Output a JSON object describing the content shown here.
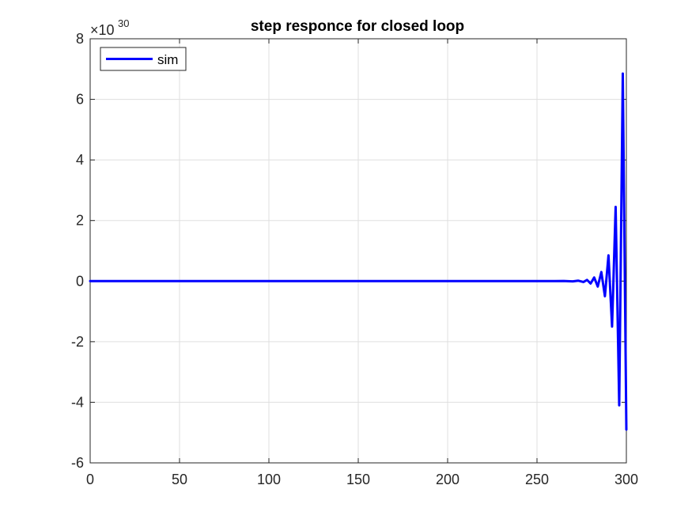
{
  "chart_data": {
    "type": "line",
    "title": "step responce for closed loop",
    "xlabel": "",
    "ylabel": "",
    "xlim": [
      0,
      300
    ],
    "ylim": [
      -6,
      8
    ],
    "y_exponent_label": {
      "base": "×10",
      "power": "30"
    },
    "x_ticks": [
      "0",
      "50",
      "100",
      "150",
      "200",
      "250",
      "300"
    ],
    "y_ticks": [
      "-6",
      "-4",
      "-2",
      "0",
      "2",
      "4",
      "6",
      "8"
    ],
    "grid": true,
    "legend": {
      "position": "top-left",
      "entries": [
        "sim"
      ]
    },
    "series": [
      {
        "name": "sim",
        "color": "#0000ff",
        "x": [
          0,
          240,
          260,
          265,
          270,
          273,
          276,
          278,
          280,
          282,
          284,
          286,
          288,
          290,
          292,
          294,
          296,
          298,
          300
        ],
        "y": [
          0,
          0,
          0,
          0.005,
          -0.01,
          0.015,
          -0.03,
          0.04,
          -0.08,
          0.12,
          -0.18,
          0.3,
          -0.5,
          0.85,
          -1.5,
          2.45,
          -4.1,
          6.85,
          -4.9
        ]
      }
    ]
  }
}
